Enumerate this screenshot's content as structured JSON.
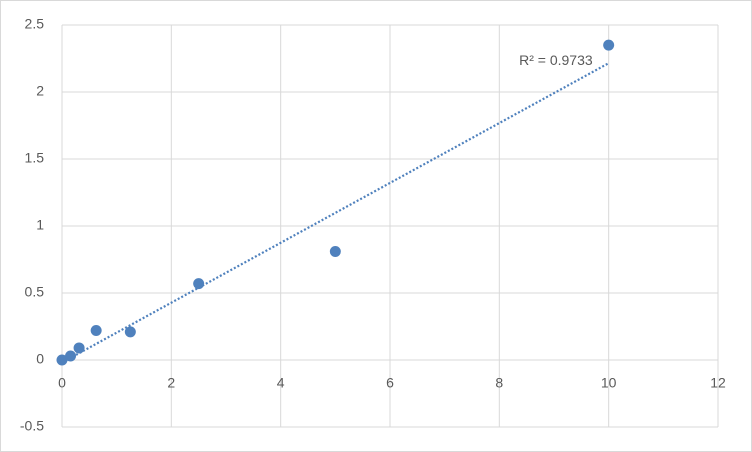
{
  "chart_data": {
    "type": "scatter",
    "x": [
      0,
      0.156,
      0.3125,
      0.625,
      1.25,
      2.5,
      5,
      10
    ],
    "series": [
      {
        "color": "#4f81bd",
        "values": [
          0,
          0.03,
          0.09,
          0.22,
          0.21,
          0.57,
          0.81,
          2.35
        ]
      }
    ],
    "trendline": {
      "type": "linear",
      "label": "R² = 0.9733"
    },
    "xlim": [
      0,
      12
    ],
    "xticks": [
      0,
      2,
      4,
      6,
      8,
      10,
      12
    ],
    "ylim": [
      -0.5,
      2.5
    ],
    "yticks": [
      -0.5,
      0,
      0.5,
      1,
      1.5,
      2,
      2.5
    ],
    "grid": true
  }
}
